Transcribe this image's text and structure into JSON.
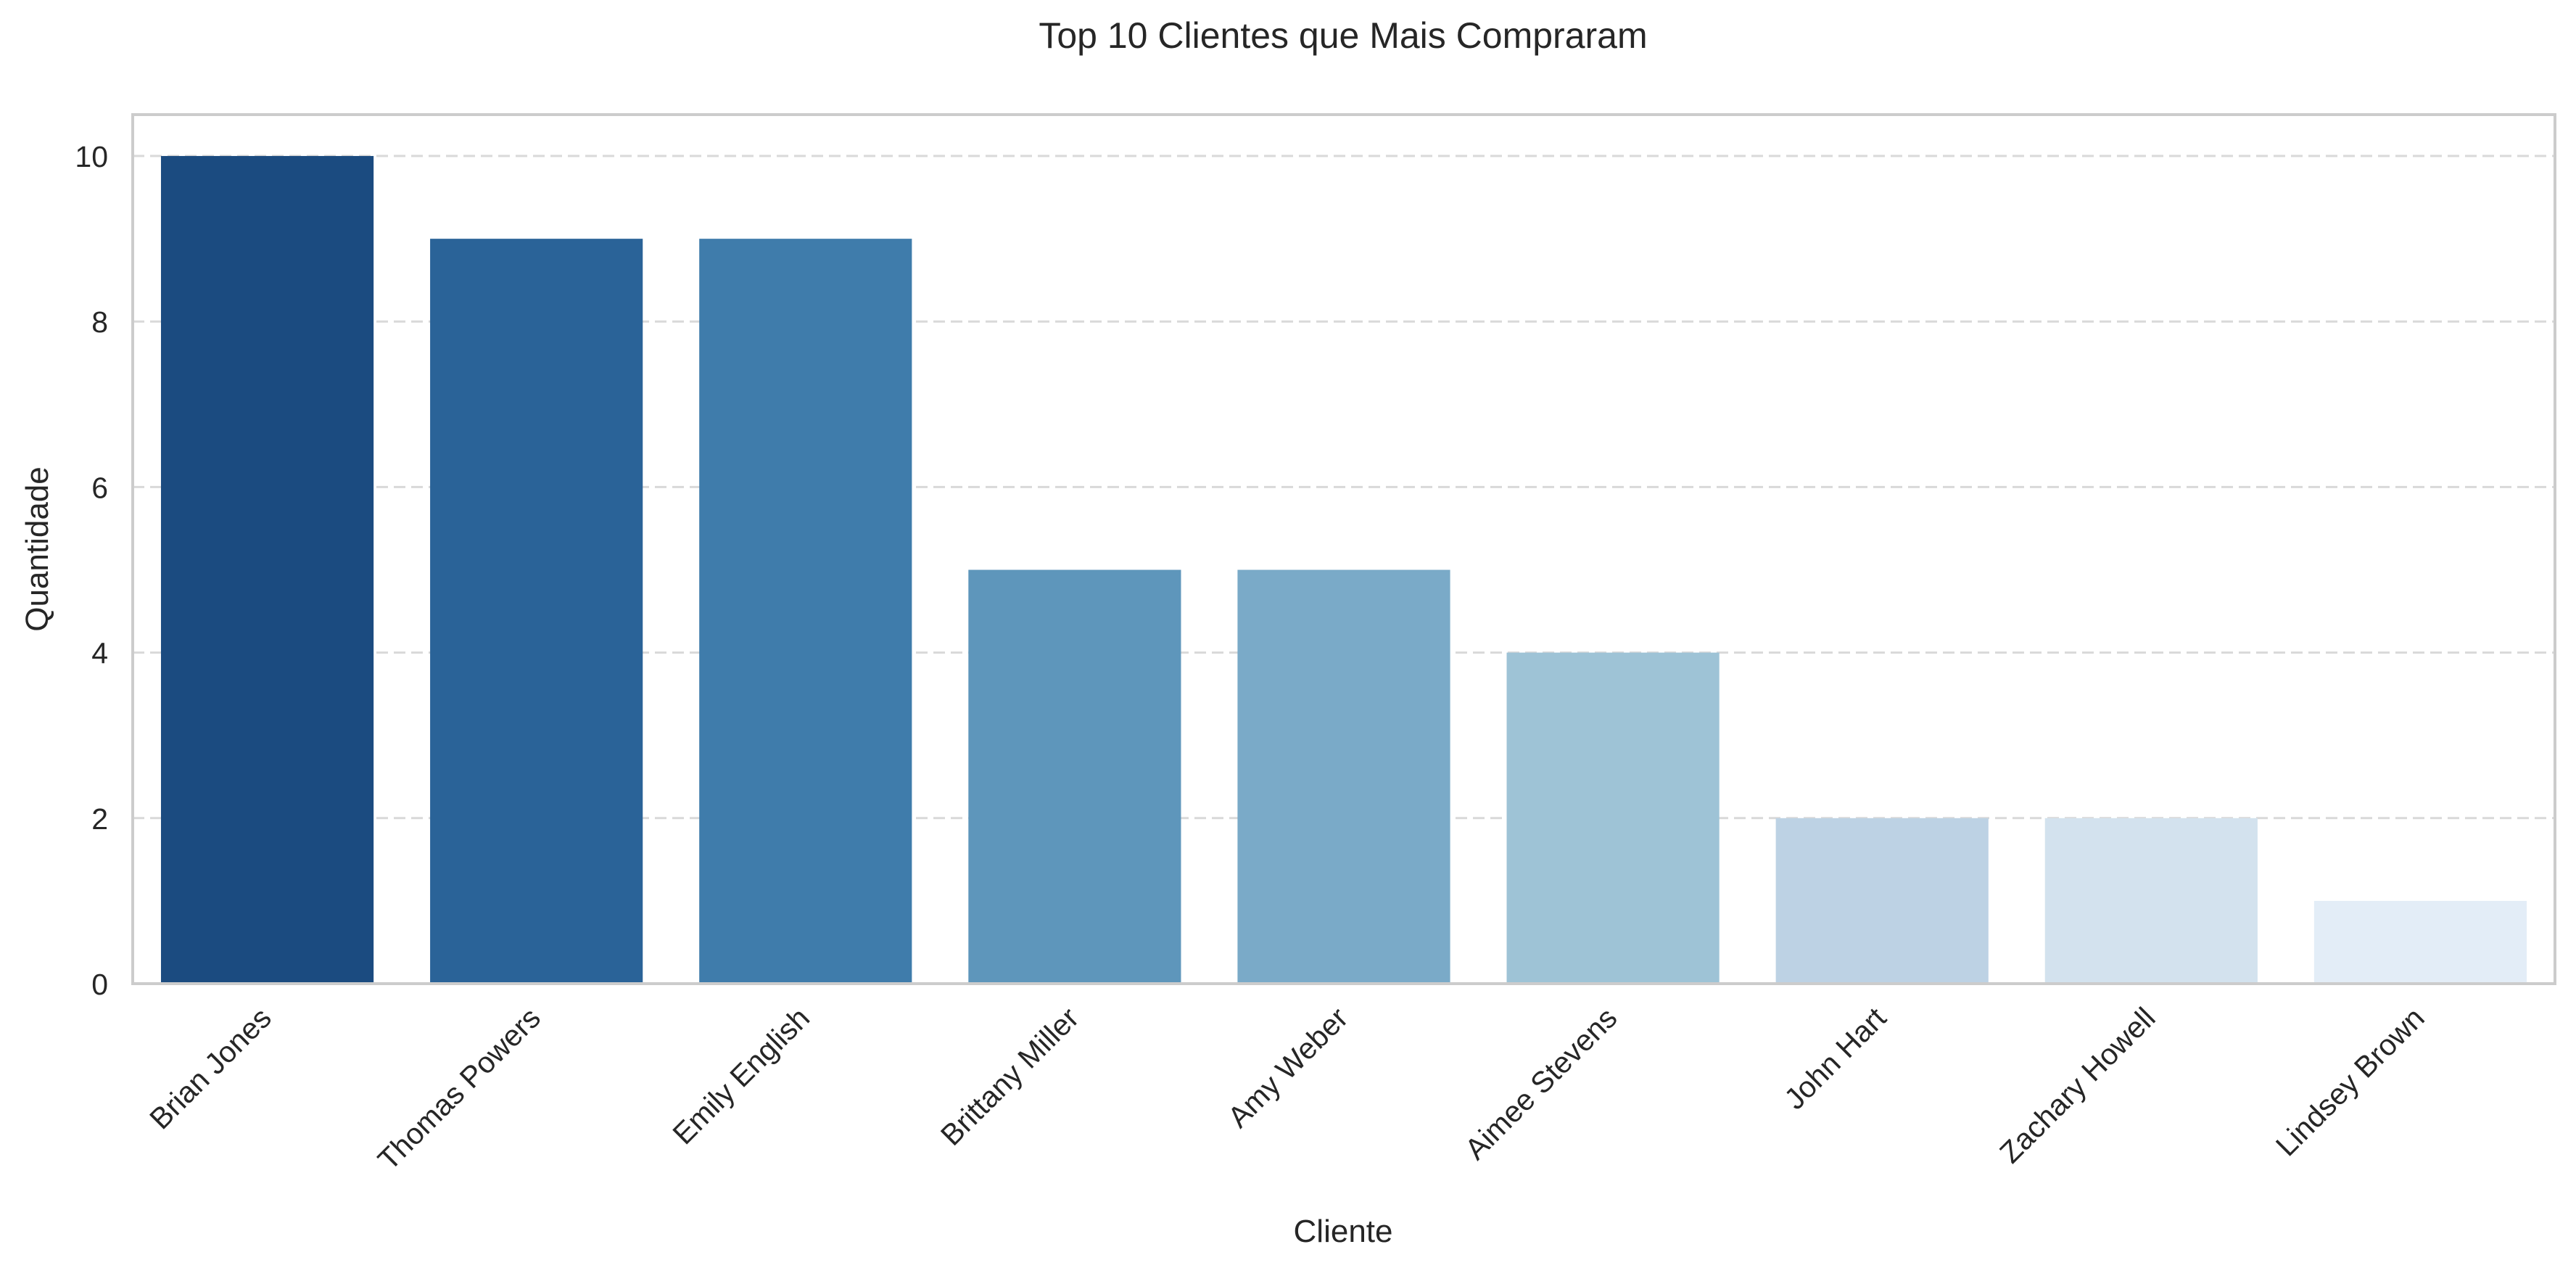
{
  "chart_data": {
    "type": "bar",
    "title": "Top 10 Clientes que Mais Compraram",
    "xlabel": "Cliente",
    "ylabel": "Quantidade",
    "categories": [
      "Brian Jones",
      "Thomas Powers",
      "Emily English",
      "Brittany Miller",
      "Amy Weber",
      "Aimee Stevens",
      "John Hart",
      "Zachary Howell",
      "Lindsey Brown"
    ],
    "values": [
      10,
      9,
      9,
      5,
      5,
      4,
      2,
      2,
      1
    ],
    "ylim": [
      0,
      10.5
    ],
    "yticks": [
      0,
      2,
      4,
      6,
      8,
      10
    ],
    "grid": "horizontal dashed",
    "colors": [
      "#1b4b80",
      "#2a6398",
      "#3f7cab",
      "#5e96bb",
      "#7aaac8",
      "#9ec3d6",
      "#bdd2e4",
      "#d3e2ee",
      "#e3edf7"
    ],
    "grid_color": "#d9d9d9",
    "frame_color": "#cccccc"
  }
}
